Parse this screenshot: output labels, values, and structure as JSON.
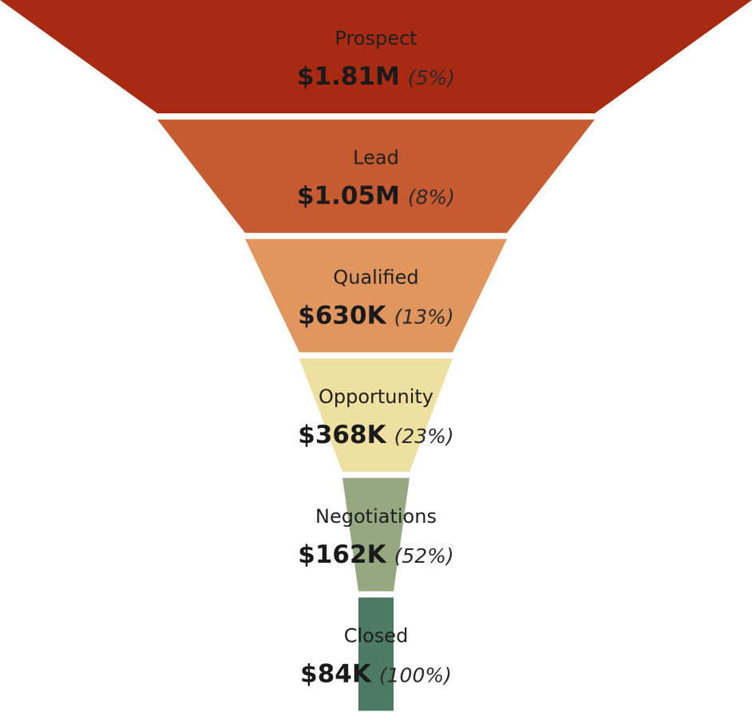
{
  "chart_data": {
    "type": "funnel",
    "stages": [
      {
        "label": "Prospect",
        "value": 1810000,
        "value_text": "$1.81M",
        "pct_text": "(5%)",
        "color": "#a82a12"
      },
      {
        "label": "Lead",
        "value": 1050000,
        "value_text": "$1.05M",
        "pct_text": "(8%)",
        "color": "#c65b31"
      },
      {
        "label": "Qualified",
        "value": 630000,
        "value_text": "$630K",
        "pct_text": "(13%)",
        "color": "#e0965e"
      },
      {
        "label": "Opportunity",
        "value": 368000,
        "value_text": "$368K",
        "pct_text": "(23%)",
        "color": "#ede0a1"
      },
      {
        "label": "Negotiations",
        "value": 162000,
        "value_text": "$162K",
        "pct_text": "(52%)",
        "color": "#95a880"
      },
      {
        "label": "Closed",
        "value": 84000,
        "value_text": "$84K",
        "pct_text": "(100%)",
        "color": "#4d7a63"
      }
    ]
  }
}
